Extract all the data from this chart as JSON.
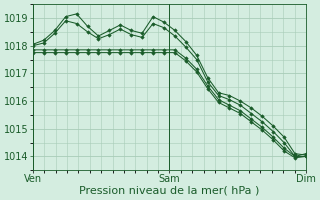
{
  "background_color": "#d4ede0",
  "grid_color": "#a8ccb8",
  "line_color": "#1a5c2a",
  "marker_color": "#1a5c2a",
  "xlabel": "Pression niveau de la mer( hPa )",
  "xlabel_fontsize": 8,
  "tick_label_fontsize": 7,
  "ylim": [
    1013.5,
    1019.5
  ],
  "yticks": [
    1014,
    1015,
    1016,
    1017,
    1018,
    1019
  ],
  "xtick_labels": [
    "Ven",
    "Sam",
    "Dim"
  ],
  "xtick_positions": [
    0,
    24,
    48
  ],
  "series": [
    [
      1018.05,
      1018.2,
      1018.55,
      1019.05,
      1019.15,
      1018.7,
      1018.35,
      1018.55,
      1018.75,
      1018.55,
      1018.45,
      1019.05,
      1018.85,
      1018.55,
      1018.15,
      1017.65,
      1016.85,
      1016.3,
      1016.2,
      1016.0,
      1015.75,
      1015.45,
      1015.1,
      1014.7,
      1014.1,
      1014.05
    ],
    [
      1018.0,
      1018.1,
      1018.45,
      1018.9,
      1018.8,
      1018.5,
      1018.25,
      1018.4,
      1018.6,
      1018.4,
      1018.3,
      1018.8,
      1018.65,
      1018.35,
      1017.95,
      1017.5,
      1016.7,
      1016.2,
      1016.05,
      1015.85,
      1015.55,
      1015.25,
      1014.9,
      1014.5,
      1014.0,
      1014.1
    ],
    [
      1017.85,
      1017.85,
      1017.85,
      1017.85,
      1017.85,
      1017.85,
      1017.85,
      1017.85,
      1017.85,
      1017.85,
      1017.85,
      1017.85,
      1017.85,
      1017.85,
      1017.55,
      1017.15,
      1016.55,
      1016.05,
      1015.85,
      1015.65,
      1015.35,
      1015.05,
      1014.7,
      1014.3,
      1014.0,
      1014.0
    ],
    [
      1017.75,
      1017.75,
      1017.75,
      1017.75,
      1017.75,
      1017.75,
      1017.75,
      1017.75,
      1017.75,
      1017.75,
      1017.75,
      1017.75,
      1017.75,
      1017.75,
      1017.45,
      1017.05,
      1016.45,
      1015.95,
      1015.75,
      1015.55,
      1015.25,
      1014.95,
      1014.6,
      1014.2,
      1013.95,
      1014.0
    ]
  ]
}
